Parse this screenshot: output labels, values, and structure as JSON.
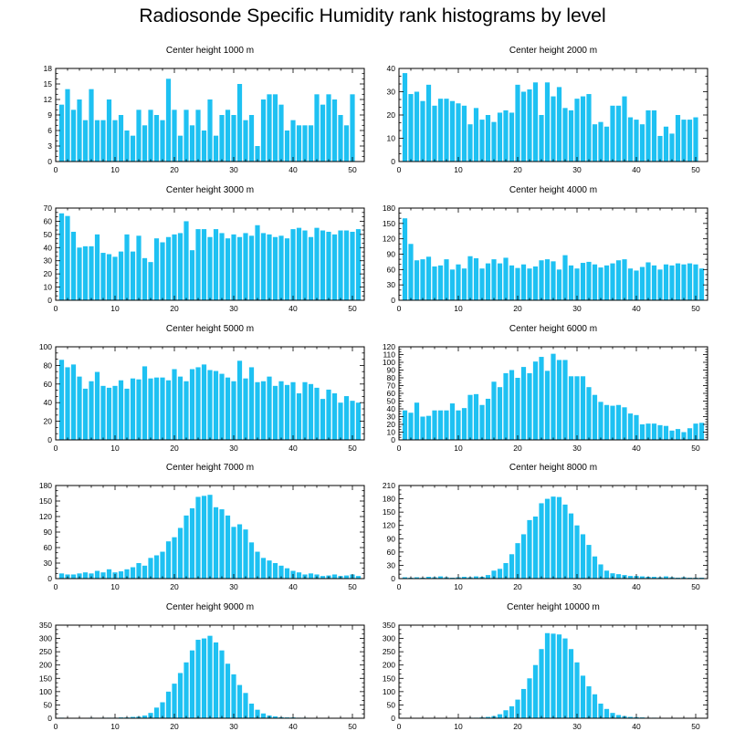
{
  "figure": {
    "title": "Radiosonde Specific Humidity rank histograms by level"
  },
  "chart_data": [
    {
      "type": "bar",
      "title": "Center height 1000 m",
      "xlim": [
        0,
        52
      ],
      "ylim": [
        0,
        18
      ],
      "xticks": [
        0,
        10,
        20,
        30,
        40,
        50
      ],
      "yticks": [
        0,
        3,
        6,
        9,
        12,
        15,
        18
      ],
      "x": [
        1,
        2,
        3,
        4,
        5,
        6,
        7,
        8,
        9,
        10,
        11,
        12,
        13,
        14,
        15,
        16,
        17,
        18,
        19,
        20,
        21,
        22,
        23,
        24,
        25,
        26,
        27,
        28,
        29,
        30,
        31,
        32,
        33,
        34,
        35,
        36,
        37,
        38,
        39,
        40,
        41,
        42,
        43,
        44,
        45,
        46,
        47,
        48,
        49,
        50,
        51
      ],
      "values": [
        11,
        14,
        10,
        12,
        8,
        14,
        8,
        8,
        12,
        8,
        9,
        6,
        5,
        10,
        7,
        10,
        9,
        8,
        16,
        10,
        5,
        10,
        7,
        10,
        6,
        12,
        5,
        9,
        10,
        9,
        15,
        8,
        9,
        3,
        12,
        13,
        13,
        11,
        6,
        8,
        7,
        7,
        7,
        13,
        11,
        13,
        12,
        9,
        7,
        13,
        0
      ]
    },
    {
      "type": "bar",
      "title": "Center height 2000 m",
      "xlim": [
        0,
        52
      ],
      "ylim": [
        0,
        40
      ],
      "xticks": [
        0,
        10,
        20,
        30,
        40,
        50
      ],
      "yticks": [
        0,
        10,
        20,
        30,
        40
      ],
      "x": [
        1,
        2,
        3,
        4,
        5,
        6,
        7,
        8,
        9,
        10,
        11,
        12,
        13,
        14,
        15,
        16,
        17,
        18,
        19,
        20,
        21,
        22,
        23,
        24,
        25,
        26,
        27,
        28,
        29,
        30,
        31,
        32,
        33,
        34,
        35,
        36,
        37,
        38,
        39,
        40,
        41,
        42,
        43,
        44,
        45,
        46,
        47,
        48,
        49,
        50,
        51
      ],
      "values": [
        38,
        29,
        30,
        26,
        33,
        24,
        27,
        27,
        26,
        25,
        24,
        16,
        23,
        18,
        20,
        17,
        21,
        22,
        21,
        33,
        30,
        31,
        34,
        20,
        34,
        28,
        32,
        23,
        22,
        27,
        28,
        29,
        16,
        17,
        15,
        24,
        24,
        28,
        19,
        18,
        16,
        22,
        22,
        11,
        15,
        12,
        20,
        18,
        18,
        19,
        0
      ]
    },
    {
      "type": "bar",
      "title": "Center height 3000 m",
      "xlim": [
        0,
        52
      ],
      "ylim": [
        0,
        70
      ],
      "xticks": [
        0,
        10,
        20,
        30,
        40,
        50
      ],
      "yticks": [
        0,
        10,
        20,
        30,
        40,
        50,
        60,
        70
      ],
      "x": [
        1,
        2,
        3,
        4,
        5,
        6,
        7,
        8,
        9,
        10,
        11,
        12,
        13,
        14,
        15,
        16,
        17,
        18,
        19,
        20,
        21,
        22,
        23,
        24,
        25,
        26,
        27,
        28,
        29,
        30,
        31,
        32,
        33,
        34,
        35,
        36,
        37,
        38,
        39,
        40,
        41,
        42,
        43,
        44,
        45,
        46,
        47,
        48,
        49,
        50,
        51
      ],
      "values": [
        66,
        64,
        52,
        40,
        41,
        41,
        50,
        36,
        35,
        33,
        37,
        50,
        37,
        49,
        32,
        29,
        47,
        44,
        48,
        50,
        51,
        60,
        38,
        54,
        54,
        48,
        54,
        51,
        47,
        50,
        48,
        51,
        49,
        57,
        51,
        50,
        48,
        49,
        47,
        54,
        55,
        53,
        48,
        55,
        53,
        52,
        50,
        53,
        53,
        52,
        54
      ]
    },
    {
      "type": "bar",
      "title": "Center height 4000 m",
      "xlim": [
        0,
        52
      ],
      "ylim": [
        0,
        180
      ],
      "xticks": [
        0,
        10,
        20,
        30,
        40,
        50
      ],
      "yticks": [
        0,
        30,
        60,
        90,
        120,
        150,
        180
      ],
      "x": [
        1,
        2,
        3,
        4,
        5,
        6,
        7,
        8,
        9,
        10,
        11,
        12,
        13,
        14,
        15,
        16,
        17,
        18,
        19,
        20,
        21,
        22,
        23,
        24,
        25,
        26,
        27,
        28,
        29,
        30,
        31,
        32,
        33,
        34,
        35,
        36,
        37,
        38,
        39,
        40,
        41,
        42,
        43,
        44,
        45,
        46,
        47,
        48,
        49,
        50,
        51
      ],
      "values": [
        160,
        110,
        78,
        80,
        85,
        66,
        68,
        80,
        60,
        70,
        62,
        86,
        82,
        62,
        72,
        80,
        72,
        83,
        68,
        63,
        70,
        62,
        66,
        78,
        80,
        76,
        60,
        88,
        68,
        62,
        73,
        75,
        70,
        64,
        68,
        72,
        78,
        80,
        62,
        58,
        65,
        74,
        68,
        60,
        70,
        68,
        72,
        70,
        72,
        70,
        62
      ]
    },
    {
      "type": "bar",
      "title": "Center height 5000 m",
      "xlim": [
        0,
        52
      ],
      "ylim": [
        0,
        100
      ],
      "xticks": [
        0,
        10,
        20,
        30,
        40,
        50
      ],
      "yticks": [
        0,
        20,
        40,
        60,
        80,
        100
      ],
      "x": [
        1,
        2,
        3,
        4,
        5,
        6,
        7,
        8,
        9,
        10,
        11,
        12,
        13,
        14,
        15,
        16,
        17,
        18,
        19,
        20,
        21,
        22,
        23,
        24,
        25,
        26,
        27,
        28,
        29,
        30,
        31,
        32,
        33,
        34,
        35,
        36,
        37,
        38,
        39,
        40,
        41,
        42,
        43,
        44,
        45,
        46,
        47,
        48,
        49,
        50,
        51
      ],
      "values": [
        86,
        78,
        81,
        68,
        55,
        63,
        73,
        58,
        56,
        58,
        64,
        55,
        66,
        65,
        79,
        66,
        67,
        67,
        64,
        76,
        68,
        63,
        76,
        78,
        81,
        75,
        74,
        71,
        67,
        63,
        85,
        66,
        78,
        62,
        63,
        68,
        58,
        63,
        59,
        62,
        50,
        62,
        60,
        56,
        44,
        54,
        50,
        40,
        47,
        42,
        40
      ]
    },
    {
      "type": "bar",
      "title": "Center height 6000 m",
      "xlim": [
        0,
        52
      ],
      "ylim": [
        0,
        120
      ],
      "xticks": [
        0,
        10,
        20,
        30,
        40,
        50
      ],
      "yticks": [
        0,
        10,
        20,
        30,
        40,
        50,
        60,
        70,
        80,
        90,
        100,
        110,
        120
      ],
      "x": [
        1,
        2,
        3,
        4,
        5,
        6,
        7,
        8,
        9,
        10,
        11,
        12,
        13,
        14,
        15,
        16,
        17,
        18,
        19,
        20,
        21,
        22,
        23,
        24,
        25,
        26,
        27,
        28,
        29,
        30,
        31,
        32,
        33,
        34,
        35,
        36,
        37,
        38,
        39,
        40,
        41,
        42,
        43,
        44,
        45,
        46,
        47,
        48,
        49,
        50,
        51
      ],
      "values": [
        38,
        35,
        48,
        30,
        31,
        38,
        38,
        38,
        47,
        38,
        41,
        58,
        59,
        45,
        53,
        75,
        68,
        86,
        90,
        80,
        94,
        86,
        101,
        107,
        89,
        111,
        103,
        103,
        82,
        82,
        82,
        68,
        58,
        49,
        45,
        44,
        45,
        42,
        34,
        32,
        20,
        21,
        21,
        19,
        18,
        12,
        14,
        10,
        15,
        21,
        22
      ]
    },
    {
      "type": "bar",
      "title": "Center height 7000 m",
      "xlim": [
        0,
        52
      ],
      "ylim": [
        0,
        180
      ],
      "xticks": [
        0,
        10,
        20,
        30,
        40,
        50
      ],
      "yticks": [
        0,
        30,
        60,
        90,
        120,
        150,
        180
      ],
      "x": [
        1,
        2,
        3,
        4,
        5,
        6,
        7,
        8,
        9,
        10,
        11,
        12,
        13,
        14,
        15,
        16,
        17,
        18,
        19,
        20,
        21,
        22,
        23,
        24,
        25,
        26,
        27,
        28,
        29,
        30,
        31,
        32,
        33,
        34,
        35,
        36,
        37,
        38,
        39,
        40,
        41,
        42,
        43,
        44,
        45,
        46,
        47,
        48,
        49,
        50,
        51
      ],
      "values": [
        10,
        8,
        8,
        10,
        12,
        10,
        15,
        12,
        18,
        12,
        14,
        18,
        22,
        30,
        25,
        40,
        45,
        52,
        72,
        80,
        98,
        122,
        136,
        158,
        160,
        162,
        138,
        134,
        122,
        100,
        105,
        95,
        70,
        52,
        40,
        35,
        30,
        25,
        20,
        15,
        12,
        8,
        10,
        8,
        5,
        6,
        8,
        5,
        6,
        8,
        5
      ]
    },
    {
      "type": "bar",
      "title": "Center height 8000 m",
      "xlim": [
        0,
        52
      ],
      "ylim": [
        0,
        210
      ],
      "xticks": [
        0,
        10,
        20,
        30,
        40,
        50
      ],
      "yticks": [
        0,
        30,
        60,
        90,
        120,
        150,
        180,
        210
      ],
      "x": [
        1,
        2,
        3,
        4,
        5,
        6,
        7,
        8,
        9,
        10,
        11,
        12,
        13,
        14,
        15,
        16,
        17,
        18,
        19,
        20,
        21,
        22,
        23,
        24,
        25,
        26,
        27,
        28,
        29,
        30,
        31,
        32,
        33,
        34,
        35,
        36,
        37,
        38,
        39,
        40,
        41,
        42,
        43,
        44,
        45,
        46,
        47,
        48,
        49,
        50,
        51
      ],
      "values": [
        3,
        2,
        3,
        2,
        4,
        3,
        5,
        3,
        2,
        3,
        4,
        3,
        5,
        4,
        8,
        18,
        22,
        35,
        55,
        80,
        100,
        132,
        140,
        170,
        180,
        185,
        184,
        167,
        147,
        120,
        100,
        76,
        50,
        32,
        18,
        12,
        10,
        8,
        6,
        6,
        5,
        4,
        4,
        3,
        5,
        3,
        2,
        3,
        2,
        2,
        2
      ]
    },
    {
      "type": "bar",
      "title": "Center height 9000 m",
      "xlim": [
        0,
        52
      ],
      "ylim": [
        0,
        350
      ],
      "xticks": [
        0,
        10,
        20,
        30,
        40,
        50
      ],
      "yticks": [
        0,
        50,
        100,
        150,
        200,
        250,
        300,
        350
      ],
      "x": [
        1,
        2,
        3,
        4,
        5,
        6,
        7,
        8,
        9,
        10,
        11,
        12,
        13,
        14,
        15,
        16,
        17,
        18,
        19,
        20,
        21,
        22,
        23,
        24,
        25,
        26,
        27,
        28,
        29,
        30,
        31,
        32,
        33,
        34,
        35,
        36,
        37,
        38,
        39,
        40,
        41,
        42,
        43,
        44,
        45,
        46,
        47,
        48,
        49,
        50,
        51
      ],
      "values": [
        2,
        1,
        1,
        1,
        1,
        2,
        1,
        2,
        2,
        2,
        3,
        3,
        5,
        6,
        10,
        20,
        40,
        60,
        100,
        130,
        170,
        210,
        255,
        295,
        300,
        310,
        285,
        255,
        205,
        165,
        125,
        95,
        55,
        32,
        18,
        10,
        7,
        4,
        3,
        3,
        2,
        2,
        1,
        1,
        1,
        1,
        1,
        1,
        1,
        1,
        1
      ]
    },
    {
      "type": "bar",
      "title": "Center height 10000 m",
      "xlim": [
        0,
        52
      ],
      "ylim": [
        0,
        350
      ],
      "xticks": [
        0,
        10,
        20,
        30,
        40,
        50
      ],
      "yticks": [
        0,
        50,
        100,
        150,
        200,
        250,
        300,
        350
      ],
      "x": [
        1,
        2,
        3,
        4,
        5,
        6,
        7,
        8,
        9,
        10,
        11,
        12,
        13,
        14,
        15,
        16,
        17,
        18,
        19,
        20,
        21,
        22,
        23,
        24,
        25,
        26,
        27,
        28,
        29,
        30,
        31,
        32,
        33,
        34,
        35,
        36,
        37,
        38,
        39,
        40,
        41,
        42,
        43,
        44,
        45,
        46,
        47,
        48,
        49,
        50,
        51
      ],
      "values": [
        1,
        1,
        1,
        1,
        1,
        1,
        1,
        1,
        1,
        1,
        1,
        2,
        2,
        3,
        5,
        8,
        15,
        30,
        45,
        70,
        110,
        150,
        200,
        260,
        320,
        318,
        315,
        300,
        260,
        210,
        160,
        120,
        90,
        55,
        35,
        20,
        12,
        8,
        5,
        4,
        3,
        2,
        2,
        1,
        1,
        1,
        1,
        1,
        1,
        1,
        1
      ]
    }
  ]
}
